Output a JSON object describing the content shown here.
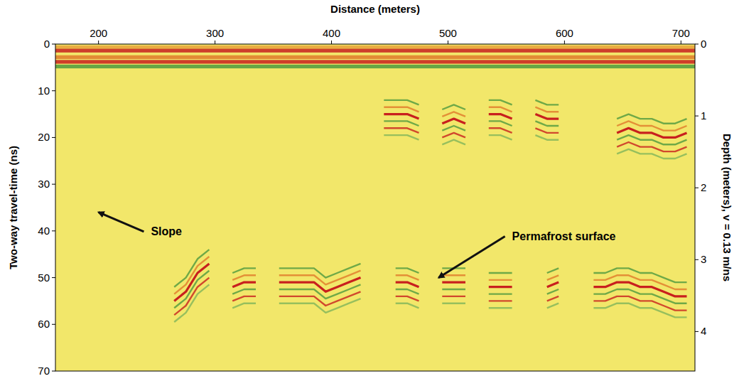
{
  "chart_data": {
    "type": "radargram",
    "x_label": "Distance (meters)",
    "y_label": "Two-way travel-time (ns)",
    "y2_label": "Depth (meters), v = 0.13 m/ns",
    "xlim": [
      163,
      712
    ],
    "xticks": [
      200,
      300,
      400,
      500,
      600,
      700
    ],
    "ylim": [
      0,
      70
    ],
    "yticks": [
      0,
      10,
      20,
      30,
      40,
      50,
      60,
      70
    ],
    "y2lim": [
      0,
      4.55
    ],
    "y2ticks": [
      0,
      1,
      2,
      3,
      4
    ],
    "x": [
      165,
      175,
      185,
      195,
      205,
      215,
      225,
      235,
      245,
      255,
      265,
      275,
      285,
      295,
      305,
      315,
      325,
      335,
      345,
      355,
      365,
      375,
      385,
      395,
      405,
      415,
      425,
      435,
      445,
      455,
      465,
      475,
      485,
      495,
      505,
      515,
      525,
      535,
      545,
      555,
      565,
      575,
      585,
      595,
      605,
      615,
      625,
      635,
      645,
      655,
      665,
      675,
      685,
      695,
      705
    ],
    "series": [
      {
        "color": "#c8201e",
        "values": [
          null,
          null,
          null,
          null,
          null,
          null,
          null,
          null,
          null,
          null,
          55,
          53,
          49,
          47,
          null,
          52,
          51,
          51,
          null,
          51,
          51,
          51,
          51,
          53,
          52,
          51,
          50,
          null,
          null,
          51,
          51,
          52,
          null,
          51,
          51,
          51,
          null,
          52,
          52,
          52,
          null,
          null,
          52,
          51,
          null,
          null,
          52,
          52,
          51,
          51,
          52,
          52,
          53,
          54,
          54
        ]
      },
      {
        "color": "#c8201e",
        "values": [
          null,
          null,
          null,
          null,
          null,
          null,
          null,
          null,
          null,
          null,
          null,
          null,
          null,
          null,
          null,
          null,
          null,
          null,
          null,
          null,
          null,
          null,
          null,
          null,
          null,
          null,
          null,
          null,
          15,
          15,
          15,
          16,
          null,
          17,
          16,
          17,
          null,
          15,
          15,
          16,
          null,
          15,
          16,
          16,
          null,
          null,
          null,
          null,
          19,
          18,
          19,
          19,
          20,
          20,
          19
        ]
      }
    ],
    "annotations": [
      {
        "text": "Slope",
        "xy": [
          200,
          36
        ],
        "xytext": [
          245,
          41
        ]
      },
      {
        "text": "Permafrost surface",
        "xy": [
          492,
          50
        ],
        "xytext": [
          555,
          42
        ]
      }
    ]
  }
}
